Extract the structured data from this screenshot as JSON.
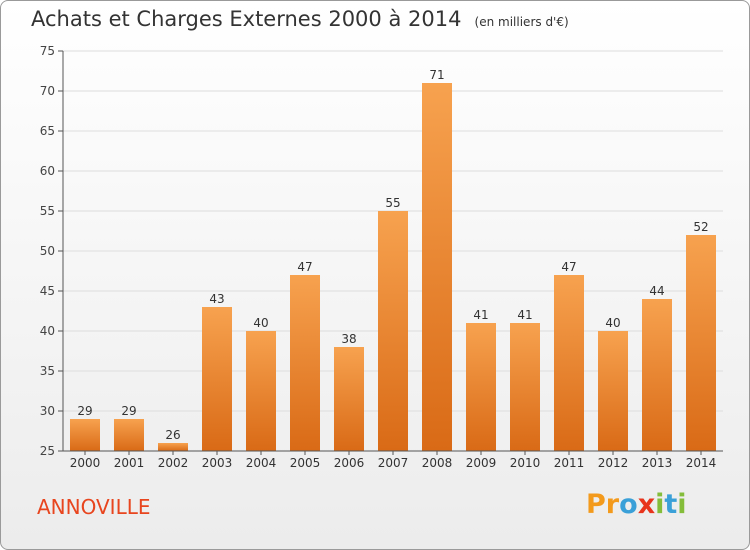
{
  "chart_data": {
    "type": "bar",
    "title": "Achats et Charges Externes 2000 à 2014",
    "subtitle": "(en milliers d'€)",
    "categories": [
      "2000",
      "2001",
      "2002",
      "2003",
      "2004",
      "2005",
      "2006",
      "2007",
      "2008",
      "2009",
      "2010",
      "2011",
      "2012",
      "2013",
      "2014"
    ],
    "values": [
      29,
      29,
      26,
      43,
      40,
      47,
      38,
      55,
      71,
      41,
      41,
      47,
      40,
      44,
      52
    ],
    "ylim": [
      25,
      75
    ],
    "yticks": [
      25,
      30,
      35,
      40,
      45,
      50,
      55,
      60,
      65,
      70,
      75
    ],
    "grid": true,
    "colors": {
      "bar_top": "#f7a24f",
      "bar_bottom": "#d96a16",
      "grid": "#dddddd",
      "axis": "#555555"
    }
  },
  "footer": {
    "commune": "ANNOVILLE",
    "logo": [
      "P",
      "r",
      "o",
      "x",
      "i",
      "t",
      "i"
    ],
    "logo_colors": [
      "#f39a1c",
      "#f39a1c",
      "#3aa0d8",
      "#e8341c",
      "#84bd3a",
      "#3aa0d8",
      "#84bd3a"
    ]
  }
}
